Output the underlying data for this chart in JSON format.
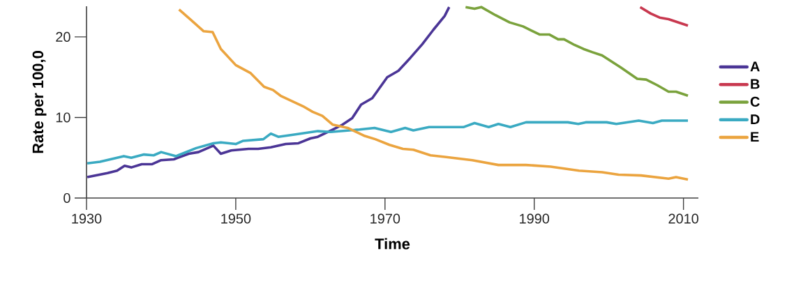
{
  "chart_data": {
    "type": "line",
    "xlabel": "Time",
    "ylabel": "Rate per 100,0",
    "xlim": [
      1930,
      2012
    ],
    "ylim": [
      0,
      23.8
    ],
    "xticks": [
      1930,
      1950,
      1970,
      1990,
      2010
    ],
    "yticks": [
      0,
      10,
      20
    ],
    "grid": false,
    "legend": "right",
    "marker": "none",
    "line_style": "solid",
    "series": [
      {
        "name": "A",
        "color": "#4b3596",
        "x": [
          1930.1,
          1932.8,
          1934.1,
          1935.1,
          1936,
          1937.4,
          1938.8,
          1940,
          1941.7,
          1943.7,
          1945,
          1947,
          1948,
          1949.4,
          1951.7,
          1953,
          1954.7,
          1956.7,
          1958.4,
          1960,
          1961,
          1963,
          1964.3,
          1965.6,
          1966.8,
          1968.3,
          1970.3,
          1971.8,
          1973.4,
          1975,
          1976.5,
          1978,
          1978.6
        ],
        "values": [
          2.6,
          3.1,
          3.4,
          4.0,
          3.8,
          4.2,
          4.2,
          4.7,
          4.8,
          5.5,
          5.7,
          6.5,
          5.5,
          5.9,
          6.1,
          6.1,
          6.3,
          6.7,
          6.8,
          7.4,
          7.6,
          8.5,
          9.1,
          9.9,
          11.6,
          12.4,
          15.0,
          15.8,
          17.4,
          19.1,
          20.9,
          22.6,
          23.7
        ]
      },
      {
        "name": "B",
        "color": "#c8384f",
        "x": [
          2004.2,
          2005.6,
          2006.8,
          2008,
          2010.6
        ],
        "values": [
          23.7,
          22.9,
          22.4,
          22.2,
          21.4
        ]
      },
      {
        "name": "C",
        "color": "#7aa23c",
        "x": [
          1980.8,
          1982,
          1982.9,
          1984.8,
          1986.7,
          1988.5,
          1990.7,
          1992,
          1993.2,
          1994,
          1995.4,
          1996.6,
          1997.8,
          1999.1,
          2001.6,
          2003.8,
          2005,
          2006.5,
          2008,
          2009,
          2010.6
        ],
        "values": [
          23.7,
          23.5,
          23.7,
          22.7,
          21.8,
          21.3,
          20.3,
          20.3,
          19.7,
          19.7,
          19.0,
          18.5,
          18.1,
          17.7,
          16.2,
          14.8,
          14.7,
          14.0,
          13.2,
          13.2,
          12.7
        ]
      },
      {
        "name": "D",
        "color": "#3aaac2",
        "x": [
          1930.1,
          1931.8,
          1935,
          1936,
          1937.7,
          1939,
          1940,
          1942,
          1944.7,
          1947,
          1948,
          1950,
          1951,
          1953.7,
          1954.7,
          1955.7,
          1958,
          1961,
          1962.7,
          1966.6,
          1968.6,
          1970.8,
          1972.7,
          1973.8,
          1975.9,
          1980.5,
          1982,
          1983.9,
          1985.2,
          1986.8,
          1988.9,
          1994.5,
          1995.9,
          1996.9,
          1999.7,
          2001,
          2004,
          2005.9,
          2007.1,
          2009,
          2010.6
        ],
        "values": [
          4.3,
          4.5,
          5.2,
          5.0,
          5.4,
          5.3,
          5.7,
          5.2,
          6.2,
          6.8,
          6.9,
          6.7,
          7.1,
          7.3,
          8.0,
          7.6,
          7.9,
          8.3,
          8.2,
          8.5,
          8.7,
          8.2,
          8.7,
          8.4,
          8.8,
          8.8,
          9.3,
          8.8,
          9.2,
          8.8,
          9.4,
          9.4,
          9.2,
          9.4,
          9.4,
          9.2,
          9.6,
          9.3,
          9.6,
          9.6,
          9.6
        ]
      },
      {
        "name": "E",
        "color": "#eba43f",
        "x": [
          1942.4,
          1944,
          1945.7,
          1946.9,
          1948,
          1950,
          1952,
          1953.8,
          1955,
          1956,
          1959,
          1960.3,
          1961.6,
          1963,
          1965,
          1967.3,
          1968.7,
          1970.6,
          1972.4,
          1973.8,
          1976.1,
          1978,
          1981.7,
          1985.2,
          1988.9,
          1992.2,
          1996,
          1999.1,
          2001.3,
          2004.3,
          2008,
          2009,
          2010.6
        ],
        "values": [
          23.4,
          22.1,
          20.7,
          20.6,
          18.5,
          16.5,
          15.5,
          13.8,
          13.4,
          12.7,
          11.4,
          10.7,
          10.2,
          9.1,
          8.7,
          7.7,
          7.3,
          6.6,
          6.1,
          6.0,
          5.3,
          5.1,
          4.7,
          4.1,
          4.1,
          3.9,
          3.4,
          3.2,
          2.9,
          2.8,
          2.4,
          2.6,
          2.3
        ]
      }
    ]
  }
}
